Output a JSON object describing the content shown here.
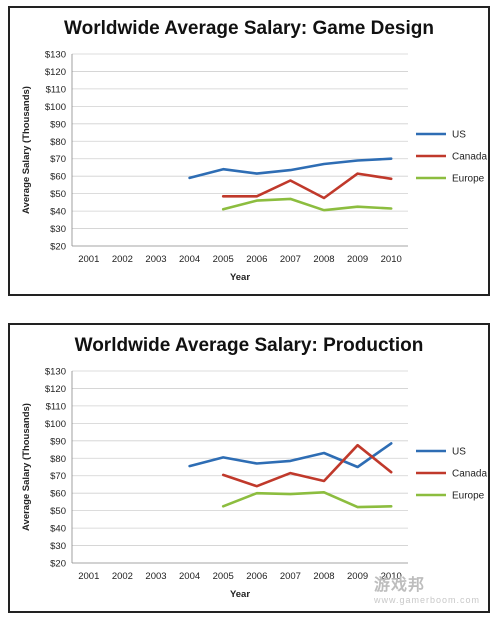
{
  "chart_data": [
    {
      "type": "line",
      "title": "Worldwide Average Salary: Game Design",
      "xlabel": "Year",
      "ylabel": "Average Salary (Thousands)",
      "categories": [
        "2001",
        "2002",
        "2003",
        "2004",
        "2005",
        "2006",
        "2007",
        "2008",
        "2009",
        "2010"
      ],
      "ylim": [
        20,
        130
      ],
      "ytick_step": 10,
      "ytick_prefix": "$",
      "grid": true,
      "legend": "right",
      "series": [
        {
          "name": "US",
          "color": "#2e6db4",
          "values": [
            null,
            null,
            null,
            59,
            64,
            61.5,
            63.5,
            67,
            69,
            70
          ]
        },
        {
          "name": "Canada",
          "color": "#c0392b",
          "values": [
            null,
            null,
            null,
            null,
            48.5,
            48.5,
            57.5,
            47.5,
            61.5,
            58.5
          ]
        },
        {
          "name": "Europe",
          "color": "#8cbd3f",
          "values": [
            null,
            null,
            null,
            null,
            41,
            46,
            47,
            40.5,
            42.5,
            41.5
          ]
        }
      ]
    },
    {
      "type": "line",
      "title": "Worldwide Average Salary: Production",
      "xlabel": "Year",
      "ylabel": "Average Salary (Thousands)",
      "categories": [
        "2001",
        "2002",
        "2003",
        "2004",
        "2005",
        "2006",
        "2007",
        "2008",
        "2009",
        "2010"
      ],
      "ylim": [
        20,
        130
      ],
      "ytick_step": 10,
      "ytick_prefix": "$",
      "grid": true,
      "legend": "right",
      "series": [
        {
          "name": "US",
          "color": "#2e6db4",
          "values": [
            null,
            null,
            null,
            75.5,
            80.5,
            77,
            78.5,
            83,
            75,
            88.5
          ]
        },
        {
          "name": "Canada",
          "color": "#c0392b",
          "values": [
            null,
            null,
            null,
            null,
            70.5,
            64,
            71.5,
            67,
            87.5,
            72
          ]
        },
        {
          "name": "Europe",
          "color": "#8cbd3f",
          "values": [
            null,
            null,
            null,
            null,
            52.5,
            60,
            59.5,
            60.5,
            52,
            52.5
          ]
        }
      ]
    }
  ],
  "watermark": {
    "text": "游戏邦",
    "sub": "www.gamerboom.com"
  }
}
